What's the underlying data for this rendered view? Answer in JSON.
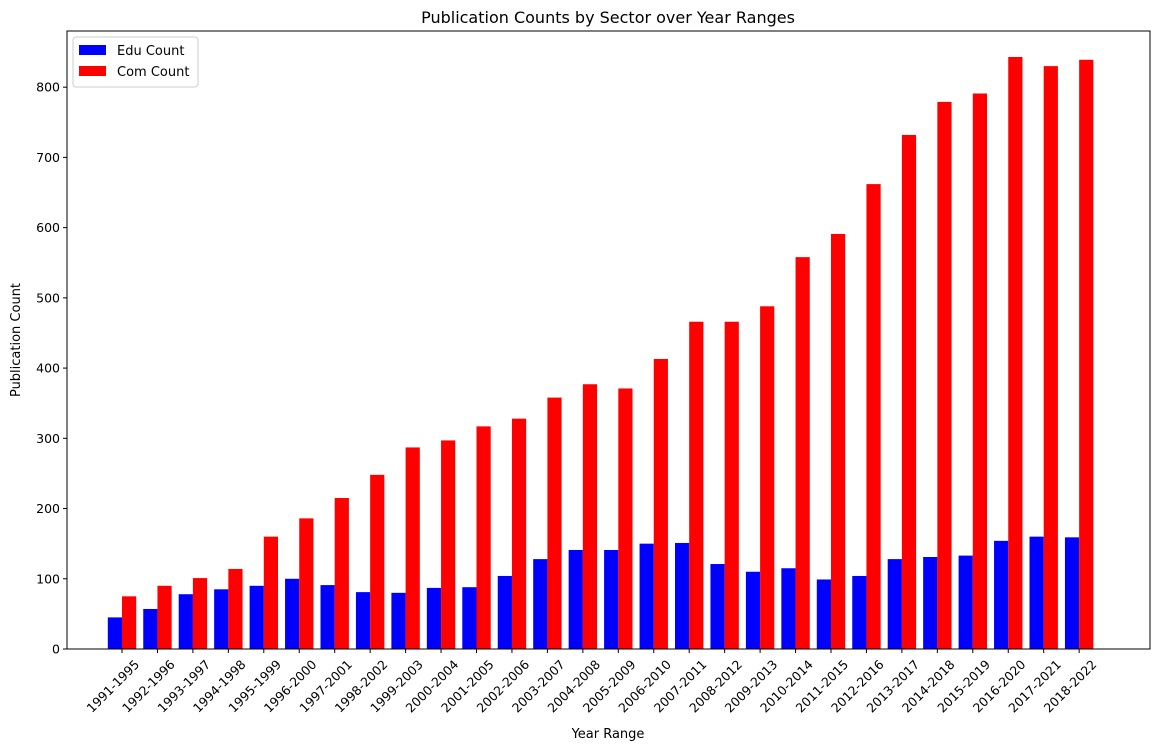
{
  "chart_data": {
    "type": "bar",
    "title": "Publication Counts by Sector over Year Ranges",
    "xlabel": "Year Range",
    "ylabel": "Publication Count",
    "ylim": [
      0,
      880
    ],
    "yticks": [
      0,
      100,
      200,
      300,
      400,
      500,
      600,
      700,
      800
    ],
    "grid": false,
    "legend_position": "top-left",
    "categories": [
      "1991-1995",
      "1992-1996",
      "1993-1997",
      "1994-1998",
      "1995-1999",
      "1996-2000",
      "1997-2001",
      "1998-2002",
      "1999-2003",
      "2000-2004",
      "2001-2005",
      "2002-2006",
      "2003-2007",
      "2004-2008",
      "2005-2009",
      "2006-2010",
      "2007-2011",
      "2008-2012",
      "2009-2013",
      "2010-2014",
      "2011-2015",
      "2012-2016",
      "2013-2017",
      "2014-2018",
      "2015-2019",
      "2016-2020",
      "2017-2021",
      "2018-2022"
    ],
    "series": [
      {
        "name": "Edu Count",
        "color": "#0000ff",
        "values": [
          45,
          57,
          78,
          85,
          90,
          100,
          91,
          81,
          80,
          87,
          88,
          104,
          128,
          141,
          141,
          150,
          151,
          121,
          110,
          115,
          99,
          104,
          128,
          131,
          133,
          154,
          160,
          159
        ]
      },
      {
        "name": "Com Count",
        "color": "#ff0000",
        "values": [
          75,
          90,
          101,
          114,
          160,
          186,
          215,
          248,
          287,
          297,
          317,
          328,
          358,
          377,
          371,
          413,
          466,
          466,
          488,
          558,
          591,
          662,
          732,
          779,
          791,
          843,
          830,
          839
        ]
      }
    ]
  }
}
